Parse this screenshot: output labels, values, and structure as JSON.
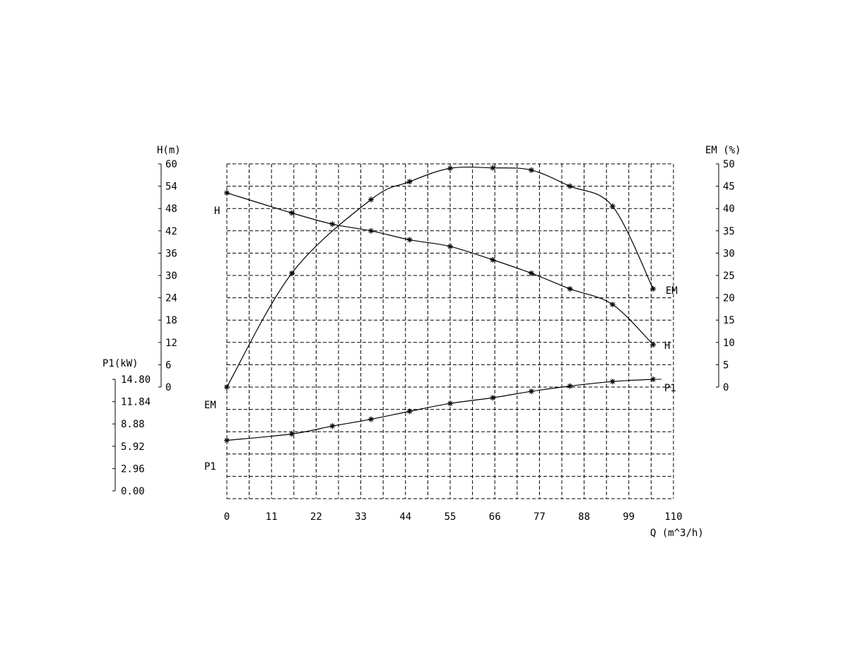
{
  "chart_data": {
    "type": "line",
    "title": "",
    "xlabel": "Q (m^3/h)",
    "x_ticks": [
      "0",
      "11",
      "22",
      "33",
      "44",
      "55",
      "66",
      "77",
      "88",
      "99",
      "110"
    ],
    "xlim": [
      0,
      110
    ],
    "grid": true,
    "axes": {
      "h": {
        "label": "H(m)",
        "ticks": [
          "0",
          "6",
          "12",
          "18",
          "24",
          "30",
          "36",
          "42",
          "48",
          "54",
          "60"
        ],
        "range": [
          0,
          60
        ]
      },
      "em": {
        "label": "EM (%)",
        "ticks": [
          "0",
          "5",
          "10",
          "15",
          "20",
          "25",
          "30",
          "35",
          "40",
          "45",
          "50"
        ],
        "range": [
          0,
          50
        ]
      },
      "p1": {
        "label": "P1(kW)",
        "ticks": [
          "0.00",
          "2.96",
          "5.92",
          "8.88",
          "11.84",
          "14.80"
        ],
        "range": [
          0,
          14.8
        ]
      }
    },
    "series": [
      {
        "name": "H",
        "axis": "h",
        "x": [
          0,
          16,
          26,
          35.5,
          45,
          55,
          65.5,
          75,
          84.5,
          95,
          105
        ],
        "y": [
          52.2,
          46.8,
          43.8,
          42,
          39.6,
          37.8,
          34.2,
          30.6,
          26.4,
          22.2,
          11.4
        ]
      },
      {
        "name": "EM",
        "axis": "em",
        "x": [
          0,
          16,
          35.5,
          45,
          55,
          65.5,
          75,
          84.5,
          95,
          105
        ],
        "y": [
          0,
          25.5,
          42,
          46,
          49,
          49.1,
          48.6,
          45,
          40.5,
          22
        ]
      },
      {
        "name": "P1",
        "axis": "p1",
        "x": [
          0,
          16,
          26,
          35.5,
          45,
          55,
          65.5,
          75,
          84.5,
          95,
          105
        ],
        "y": [
          6.7,
          7.55,
          8.6,
          9.5,
          10.55,
          11.6,
          12.35,
          13.2,
          13.9,
          14.5,
          14.8
        ]
      }
    ],
    "curve_labels": {
      "h_left": "H",
      "h_right": "H",
      "em_left": "EM",
      "em_right": "EM",
      "p1_left": "P1",
      "p1_right": "P1"
    }
  }
}
